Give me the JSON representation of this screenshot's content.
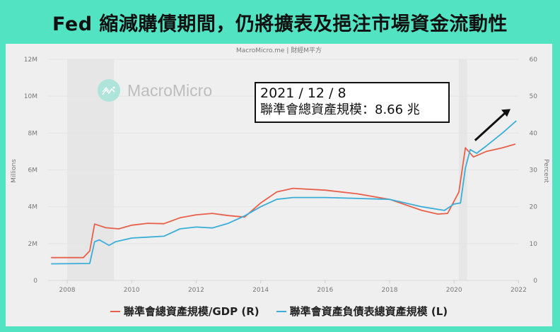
{
  "header": {
    "title": "Fed 縮減購債期間，仍將擴表及挹注市場資金流動性"
  },
  "source": "MacroMicro.me | 財經M平方",
  "watermark": {
    "text": "MacroMicro",
    "icon": "macromicro-logo-icon"
  },
  "annotation": {
    "date": "2021 / 12 / 8",
    "value": "聯準會總資產規模：8.66 兆",
    "arrow": "up-right-arrow-icon"
  },
  "colors": {
    "background": "#52e4c2",
    "panel": "#efefef",
    "red_series": "#e8604a",
    "blue_series": "#3aaed8"
  },
  "chart_data": {
    "type": "line",
    "title": "Fed 縮減購債期間，仍將擴表及挹注市場資金流動性",
    "xlabel": "",
    "ylabel_left": "Millions",
    "ylabel_right": "Percent",
    "x_ticks": [
      "2008",
      "2010",
      "2012",
      "2014",
      "2016",
      "2018",
      "2020",
      "2022"
    ],
    "y_left_ticks": [
      "0",
      "2M",
      "4M",
      "6M",
      "8M",
      "10M",
      "12M"
    ],
    "y_right_ticks": [
      "0",
      "10",
      "20",
      "30",
      "40",
      "50",
      "60"
    ],
    "ylim_left": [
      0,
      12
    ],
    "ylim_right": [
      0,
      60
    ],
    "xlim": [
      2007.4,
      2022
    ],
    "grid": true,
    "legend_position": "bottom",
    "shaded_regions": [
      [
        2008.0,
        2009.45
      ],
      [
        2020.15,
        2020.4
      ]
    ],
    "series": [
      {
        "name": "聯準會總資產規模/GDP (R)",
        "axis": "right",
        "unit": "percent",
        "color": "#e8604a",
        "x": [
          2007.5,
          2008.5,
          2008.7,
          2008.85,
          2009.2,
          2009.6,
          2010,
          2010.5,
          2011,
          2011.5,
          2012,
          2012.5,
          2013,
          2013.5,
          2014,
          2014.5,
          2015,
          2016,
          2017,
          2018,
          2019,
          2019.5,
          2019.8,
          2020.15,
          2020.35,
          2020.6,
          2021,
          2021.5,
          2021.9
        ],
        "values": [
          6.2,
          6.2,
          8,
          15.3,
          14.3,
          14,
          15,
          15.5,
          15.4,
          17,
          17.8,
          18.2,
          17.6,
          17.2,
          21,
          24,
          25,
          24.5,
          23.5,
          22,
          19,
          18,
          18.2,
          24,
          36,
          33.5,
          35,
          36,
          37
        ]
      },
      {
        "name": "聯準會資產負債表總資產規模 (L)",
        "axis": "left",
        "unit": "millions USD",
        "color": "#3aaed8",
        "x": [
          2007.5,
          2008.7,
          2008.85,
          2009,
          2009.3,
          2009.5,
          2010,
          2010.5,
          2011,
          2011.5,
          2012,
          2012.5,
          2013,
          2013.5,
          2014,
          2014.5,
          2015,
          2016,
          2017,
          2018,
          2019,
          2019.7,
          2020,
          2020.2,
          2020.35,
          2020.5,
          2020.7,
          2021,
          2021.5,
          2021.93
        ],
        "values": [
          0.9,
          0.92,
          2.1,
          2.2,
          1.9,
          2.1,
          2.3,
          2.35,
          2.4,
          2.8,
          2.9,
          2.85,
          3.1,
          3.5,
          4.0,
          4.4,
          4.5,
          4.5,
          4.45,
          4.4,
          4.0,
          3.8,
          4.15,
          4.2,
          6.1,
          7.1,
          6.9,
          7.3,
          8.0,
          8.66
        ]
      }
    ]
  },
  "legend": [
    {
      "label": "聯準會總資產規模/GDP (R)",
      "color": "#e8604a"
    },
    {
      "label": "聯準會資產負債表總資產規模 (L)",
      "color": "#3aaed8"
    }
  ]
}
